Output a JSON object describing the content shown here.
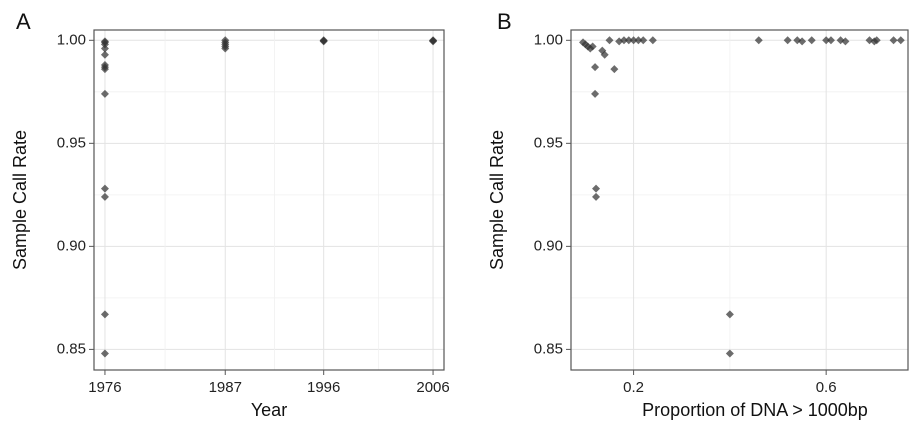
{
  "chart_data": [
    {
      "type": "scatter",
      "panel_label": "A",
      "xlabel": "Year",
      "ylabel": "Sample Call Rate",
      "x_ticks": [
        "1976",
        "1987",
        "1996",
        "2006"
      ],
      "y_ticks": [
        "0.85",
        "0.90",
        "0.95",
        "1.00"
      ],
      "xlim": [
        1975,
        2007
      ],
      "ylim": [
        0.84,
        1.005
      ],
      "grid": true,
      "point_color": "#333333",
      "points": [
        {
          "x": 1976,
          "y": 0.9995
        },
        {
          "x": 1976,
          "y": 0.999
        },
        {
          "x": 1976,
          "y": 0.998
        },
        {
          "x": 1976,
          "y": 0.996
        },
        {
          "x": 1976,
          "y": 0.993
        },
        {
          "x": 1976,
          "y": 0.988
        },
        {
          "x": 1976,
          "y": 0.987
        },
        {
          "x": 1976,
          "y": 0.986
        },
        {
          "x": 1976,
          "y": 0.974
        },
        {
          "x": 1976,
          "y": 0.928
        },
        {
          "x": 1976,
          "y": 0.924
        },
        {
          "x": 1976,
          "y": 0.867
        },
        {
          "x": 1976,
          "y": 0.848
        },
        {
          "x": 1987,
          "y": 1.0
        },
        {
          "x": 1987,
          "y": 0.999
        },
        {
          "x": 1987,
          "y": 0.998
        },
        {
          "x": 1987,
          "y": 0.997
        },
        {
          "x": 1987,
          "y": 0.996
        },
        {
          "x": 1996,
          "y": 1.0
        },
        {
          "x": 1996,
          "y": 0.9995
        },
        {
          "x": 1996,
          "y": 0.9998
        },
        {
          "x": 2006,
          "y": 1.0
        },
        {
          "x": 2006,
          "y": 0.9995
        },
        {
          "x": 2006,
          "y": 0.9998
        }
      ]
    },
    {
      "type": "scatter",
      "panel_label": "B",
      "xlabel": "Proportion of DNA > 1000bp",
      "ylabel": "Sample Call Rate",
      "x_ticks": [
        "0.2",
        "0.6"
      ],
      "y_ticks": [
        "0.85",
        "0.90",
        "0.95",
        "1.00"
      ],
      "xlim": [
        0.07,
        0.77
      ],
      "ylim": [
        0.84,
        1.005
      ],
      "grid": true,
      "point_color": "#333333",
      "points": [
        {
          "x": 0.095,
          "y": 0.999
        },
        {
          "x": 0.1,
          "y": 0.998
        },
        {
          "x": 0.105,
          "y": 0.997
        },
        {
          "x": 0.11,
          "y": 0.996
        },
        {
          "x": 0.115,
          "y": 0.997
        },
        {
          "x": 0.12,
          "y": 0.987
        },
        {
          "x": 0.12,
          "y": 0.974
        },
        {
          "x": 0.122,
          "y": 0.928
        },
        {
          "x": 0.122,
          "y": 0.924
        },
        {
          "x": 0.135,
          "y": 0.995
        },
        {
          "x": 0.14,
          "y": 0.993
        },
        {
          "x": 0.15,
          "y": 1.0
        },
        {
          "x": 0.16,
          "y": 0.986
        },
        {
          "x": 0.17,
          "y": 0.9995
        },
        {
          "x": 0.18,
          "y": 1.0
        },
        {
          "x": 0.19,
          "y": 1.0
        },
        {
          "x": 0.2,
          "y": 1.0
        },
        {
          "x": 0.21,
          "y": 1.0
        },
        {
          "x": 0.22,
          "y": 1.0
        },
        {
          "x": 0.24,
          "y": 1.0
        },
        {
          "x": 0.4,
          "y": 0.867
        },
        {
          "x": 0.4,
          "y": 0.848
        },
        {
          "x": 0.46,
          "y": 1.0
        },
        {
          "x": 0.52,
          "y": 1.0
        },
        {
          "x": 0.54,
          "y": 1.0
        },
        {
          "x": 0.55,
          "y": 0.9995
        },
        {
          "x": 0.57,
          "y": 1.0
        },
        {
          "x": 0.6,
          "y": 1.0
        },
        {
          "x": 0.61,
          "y": 1.0
        },
        {
          "x": 0.63,
          "y": 1.0
        },
        {
          "x": 0.64,
          "y": 0.9995
        },
        {
          "x": 0.69,
          "y": 1.0
        },
        {
          "x": 0.7,
          "y": 0.9995
        },
        {
          "x": 0.705,
          "y": 1.0
        },
        {
          "x": 0.74,
          "y": 1.0
        },
        {
          "x": 0.755,
          "y": 1.0
        }
      ]
    }
  ]
}
